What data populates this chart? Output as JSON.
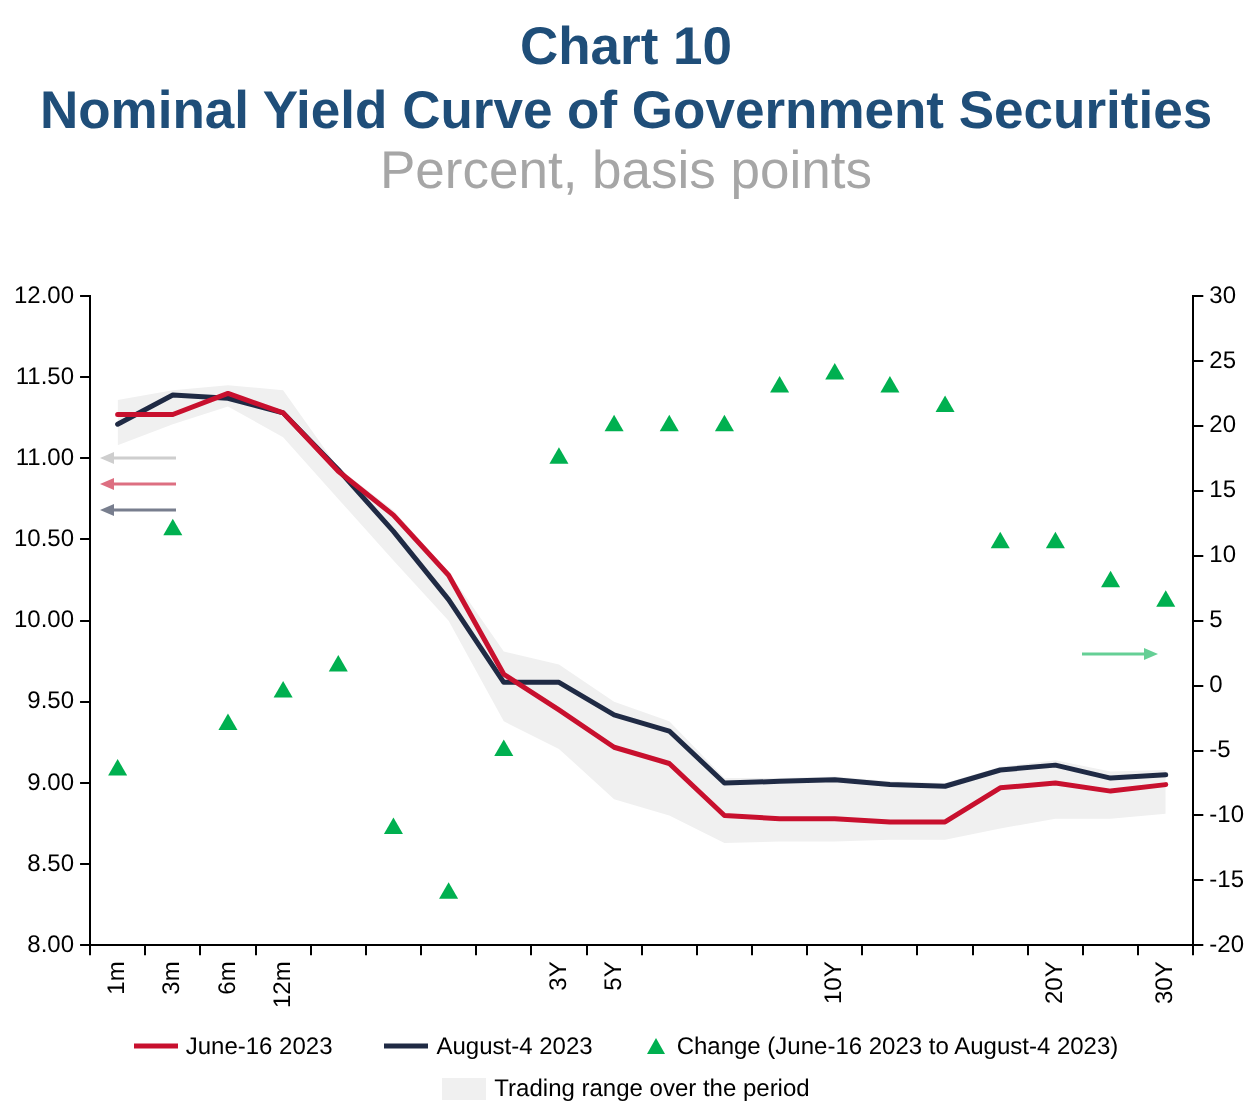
{
  "chart_data": {
    "type": "line",
    "title": "Chart 10\nNominal Yield Curve of Government Securities",
    "subtitle": "Percent, basis points",
    "categories": [
      "1m",
      "3m",
      "6m",
      "12m",
      null,
      null,
      null,
      null,
      "3Y",
      "5Y",
      null,
      null,
      null,
      "10Y",
      null,
      null,
      null,
      "20Y",
      null,
      "30Y"
    ],
    "series": [
      {
        "name": "June-16 2023",
        "color": "#c8102e",
        "values": [
          11.27,
          11.27,
          11.4,
          11.28,
          10.92,
          10.65,
          10.28,
          9.67,
          9.45,
          9.22,
          9.12,
          8.8,
          8.78,
          8.78,
          8.76,
          8.76,
          8.97,
          9.0,
          8.95,
          8.99
        ]
      },
      {
        "name": "August-4 2023",
        "color": "#1f2a44",
        "values": [
          11.21,
          11.39,
          11.37,
          11.28,
          10.93,
          10.55,
          10.13,
          9.62,
          9.62,
          9.42,
          9.32,
          9.0,
          9.01,
          9.02,
          8.99,
          8.98,
          9.08,
          9.11,
          9.03,
          9.05
        ]
      },
      {
        "name": "Change (June-16 2023 to August-4 2023)",
        "type": "scatter",
        "color": "#00b050",
        "marker": "triangle",
        "axis": "y2",
        "values": [
          -6.5,
          12,
          -3,
          -0.5,
          1.5,
          -11,
          -16,
          -5,
          17.5,
          20,
          20,
          20,
          23,
          24,
          23,
          21.5,
          11,
          11,
          8,
          6.5
        ]
      },
      {
        "name": "Trading range over the period",
        "type": "area",
        "color": "#f0f0f0",
        "values": [
          null,
          null,
          null,
          null,
          null,
          null,
          null,
          null,
          null,
          null,
          null,
          null,
          null,
          null,
          null,
          null,
          null,
          null,
          null,
          null
        ],
        "lower": [
          11.08,
          11.21,
          11.32,
          11.13,
          10.75,
          10.37,
          10.0,
          9.38,
          9.21,
          8.9,
          8.8,
          8.63,
          8.64,
          8.64,
          8.65,
          8.65,
          8.72,
          8.78,
          8.78,
          8.81
        ],
        "upper": [
          11.36,
          11.42,
          11.45,
          11.42,
          10.94,
          10.68,
          10.3,
          9.81,
          9.73,
          9.5,
          9.38,
          9.03,
          9.03,
          9.04,
          9.01,
          9.0,
          9.1,
          9.14,
          9.07,
          9.08
        ]
      }
    ],
    "ylim": [
      8,
      12
    ],
    "yticks": [
      {
        "value": 8,
        "label": "8.00"
      },
      {
        "value": 8.5,
        "label": "8.50"
      },
      {
        "value": 9,
        "label": "9.00"
      },
      {
        "value": 9.5,
        "label": "9.50"
      },
      {
        "value": 10,
        "label": "10.00"
      },
      {
        "value": 10.5,
        "label": "10.50"
      },
      {
        "value": 11,
        "label": "11.00"
      },
      {
        "value": 11.5,
        "label": "11.50"
      },
      {
        "value": 12,
        "label": "12.00"
      }
    ],
    "y2lim": [
      -20,
      30
    ],
    "y2ticks": [
      -20,
      -15,
      -10,
      -5,
      0,
      5,
      10,
      15,
      20,
      25,
      30
    ],
    "grid": false,
    "legend": "bottom"
  }
}
